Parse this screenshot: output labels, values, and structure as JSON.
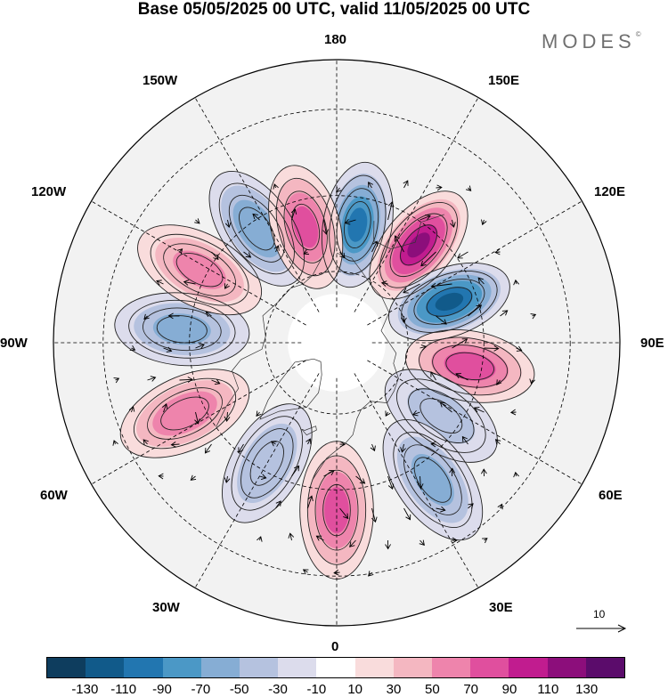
{
  "title": "Base 05/05/2025 00 UTC, valid 11/05/2025 00 UTC",
  "brand": {
    "text": "MODES",
    "mark": "©"
  },
  "longitude_labels": {
    "l180": "180",
    "l150E": "150E",
    "l120E": "120E",
    "l90E": "90E",
    "l60E": "60E",
    "l30E": "30E",
    "l0": "0",
    "l30W": "30W",
    "l60W": "60W",
    "l90W": "90W",
    "l120W": "120W",
    "l150W": "150W"
  },
  "reference_vector": {
    "label": "10"
  },
  "colorbar": {
    "colors": [
      "#0e3d5e",
      "#115a8a",
      "#2276b0",
      "#4b98c6",
      "#86add4",
      "#b5c2df",
      "#dcdcec",
      "#ffffff",
      "#f9dcdc",
      "#f4b7c1",
      "#ee84ac",
      "#e04f9e",
      "#c11c8f",
      "#8c0e7b",
      "#5b0c6b"
    ],
    "labels": [
      "-130",
      "-110",
      "-90",
      "-70",
      "-50",
      "-30",
      "-10",
      "10",
      "30",
      "50",
      "70",
      "90",
      "110",
      "130"
    ]
  },
  "anomaly_centers": [
    {
      "lon": 170,
      "lat": 57,
      "value": -100
    },
    {
      "lon": 140,
      "lat": 55,
      "value": 120
    },
    {
      "lon": 110,
      "lat": 57,
      "value": -120
    },
    {
      "lon": 80,
      "lat": 53,
      "value": 90
    },
    {
      "lon": 55,
      "lat": 55,
      "value": -40
    },
    {
      "lon": 35,
      "lat": 45,
      "value": -60
    },
    {
      "lon": 0,
      "lat": 45,
      "value": 80
    },
    {
      "lon": -30,
      "lat": 52,
      "value": -50
    },
    {
      "lon": -65,
      "lat": 45,
      "value": 70
    },
    {
      "lon": -95,
      "lat": 48,
      "value": -60
    },
    {
      "lon": -118,
      "lat": 48,
      "value": 60
    },
    {
      "lon": -145,
      "lat": 52,
      "value": -70
    },
    {
      "lon": -165,
      "lat": 57,
      "value": 80
    }
  ]
}
